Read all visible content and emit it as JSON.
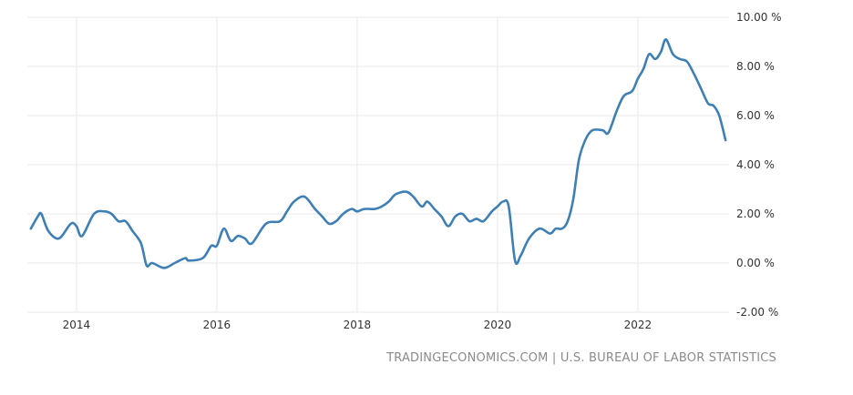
{
  "chart_data": {
    "type": "line",
    "title": "",
    "xlabel": "",
    "ylabel": "",
    "x_tick_labels": [
      "2014",
      "2016",
      "2018",
      "2020",
      "2022"
    ],
    "x_ticks": [
      2014,
      2016,
      2018,
      2020,
      2022
    ],
    "y_tick_labels": [
      "10.00 %",
      "8.00 %",
      "6.00 %",
      "4.00 %",
      "2.00 %",
      "0.00 %",
      "-2.00 %"
    ],
    "y_ticks": [
      10,
      8,
      6,
      4,
      2,
      0,
      -2
    ],
    "xlim": [
      2013.3,
      2023.3
    ],
    "ylim": [
      -2,
      10
    ],
    "grid": true,
    "legend": "none",
    "line_color": "#3e7fb6",
    "series": [
      {
        "x": [
          2013.35,
          2013.45,
          2013.5,
          2013.6,
          2013.75,
          2013.92,
          2014.0,
          2014.08,
          2014.25,
          2014.4,
          2014.5,
          2014.6,
          2014.7,
          2014.8,
          2014.92,
          2015.0,
          2015.08,
          2015.25,
          2015.4,
          2015.55,
          2015.6,
          2015.8,
          2015.92,
          2016.0,
          2016.1,
          2016.2,
          2016.3,
          2016.4,
          2016.5,
          2016.7,
          2016.9,
          2017.0,
          2017.1,
          2017.25,
          2017.4,
          2017.5,
          2017.6,
          2017.7,
          2017.8,
          2017.92,
          2018.0,
          2018.1,
          2018.25,
          2018.35,
          2018.45,
          2018.55,
          2018.7,
          2018.8,
          2018.92,
          2019.0,
          2019.1,
          2019.2,
          2019.3,
          2019.4,
          2019.5,
          2019.6,
          2019.7,
          2019.8,
          2019.92,
          2020.0,
          2020.08,
          2020.16,
          2020.25,
          2020.33,
          2020.45,
          2020.6,
          2020.75,
          2020.83,
          2020.92,
          2021.0,
          2021.08,
          2021.16,
          2021.25,
          2021.35,
          2021.5,
          2021.58,
          2021.7,
          2021.8,
          2021.92,
          2022.0,
          2022.08,
          2022.16,
          2022.25,
          2022.33,
          2022.4,
          2022.5,
          2022.6,
          2022.7,
          2022.8,
          2022.9,
          2023.0,
          2023.08,
          2023.16,
          2023.25
        ],
        "values": [
          1.4,
          1.9,
          2.0,
          1.3,
          1.0,
          1.6,
          1.5,
          1.1,
          2.0,
          2.1,
          2.0,
          1.7,
          1.7,
          1.3,
          0.8,
          -0.1,
          0.0,
          -0.2,
          0.0,
          0.2,
          0.1,
          0.2,
          0.7,
          0.7,
          1.4,
          0.9,
          1.1,
          1.0,
          0.8,
          1.6,
          1.7,
          2.1,
          2.5,
          2.7,
          2.2,
          1.9,
          1.6,
          1.7,
          2.0,
          2.2,
          2.1,
          2.2,
          2.2,
          2.3,
          2.5,
          2.8,
          2.9,
          2.7,
          2.3,
          2.5,
          2.2,
          1.9,
          1.5,
          1.9,
          2.0,
          1.7,
          1.8,
          1.7,
          2.1,
          2.3,
          2.5,
          2.3,
          0.1,
          0.3,
          1.0,
          1.4,
          1.2,
          1.4,
          1.4,
          1.7,
          2.6,
          4.2,
          5.0,
          5.4,
          5.4,
          5.3,
          6.2,
          6.8,
          7.0,
          7.5,
          7.9,
          8.5,
          8.3,
          8.6,
          9.1,
          8.5,
          8.3,
          8.2,
          7.7,
          7.1,
          6.5,
          6.4,
          6.0,
          5.0
        ]
      }
    ]
  },
  "source_text": "TRADINGECONOMICS.COM | U.S. BUREAU OF LABOR STATISTICS"
}
